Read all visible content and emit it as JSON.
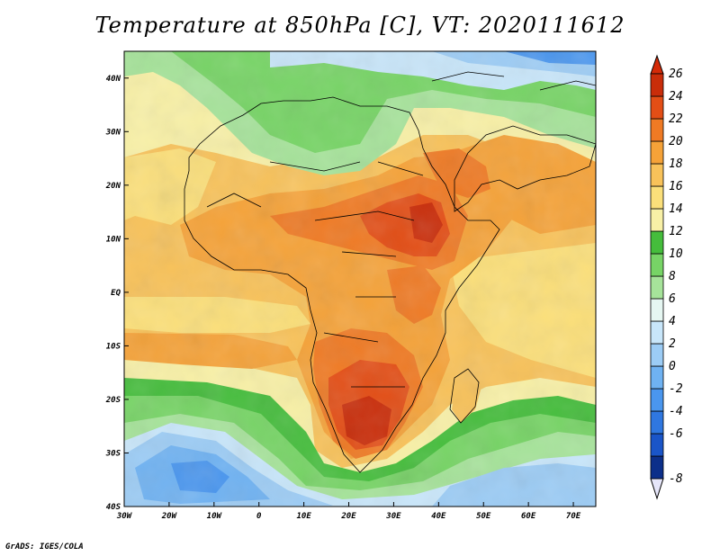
{
  "title": "Temperature at 850hPa [C], VT: 2020111612",
  "credit": "GrADS: IGES/COLA",
  "map": {
    "lon_range": [
      -30,
      75
    ],
    "lat_range": [
      -40,
      45
    ],
    "lon_ticks": [
      {
        "value": -30,
        "label": "30W"
      },
      {
        "value": -20,
        "label": "20W"
      },
      {
        "value": -10,
        "label": "10W"
      },
      {
        "value": 0,
        "label": "0"
      },
      {
        "value": 10,
        "label": "10E"
      },
      {
        "value": 20,
        "label": "20E"
      },
      {
        "value": 30,
        "label": "30E"
      },
      {
        "value": 40,
        "label": "40E"
      },
      {
        "value": 50,
        "label": "50E"
      },
      {
        "value": 60,
        "label": "60E"
      },
      {
        "value": 70,
        "label": "70E"
      }
    ],
    "lat_ticks": [
      {
        "value": 40,
        "label": "40N"
      },
      {
        "value": 30,
        "label": "30N"
      },
      {
        "value": 20,
        "label": "20N"
      },
      {
        "value": 10,
        "label": "10N"
      },
      {
        "value": 0,
        "label": "EQ"
      },
      {
        "value": -10,
        "label": "10S"
      },
      {
        "value": -20,
        "label": "20S"
      },
      {
        "value": -30,
        "label": "30S"
      },
      {
        "value": -40,
        "label": "40S"
      }
    ]
  },
  "colorbar": {
    "levels": [
      -8,
      -6,
      -4,
      -2,
      0,
      2,
      4,
      6,
      8,
      10,
      12,
      14,
      16,
      18,
      20,
      22,
      24,
      26
    ],
    "labels": [
      "-8",
      "-6",
      "-4",
      "-2",
      "0",
      "2",
      "4",
      "6",
      "8",
      "10",
      "12",
      "14",
      "16",
      "18",
      "20",
      "22",
      "24",
      "26"
    ],
    "colors": [
      "#0c2f8a",
      "#1a55c8",
      "#2f77e0",
      "#4a96ee",
      "#6fb2f2",
      "#9cccf5",
      "#c8e6fa",
      "#e6f7f2",
      "#a6e39a",
      "#77d466",
      "#45bd3c",
      "#f8f0a6",
      "#fbdf7a",
      "#f8c25a",
      "#f5a238",
      "#ef7a24",
      "#e34e16",
      "#c92d0a"
    ],
    "below_color": "#e6e6fa",
    "above_color": "#d42a08"
  }
}
